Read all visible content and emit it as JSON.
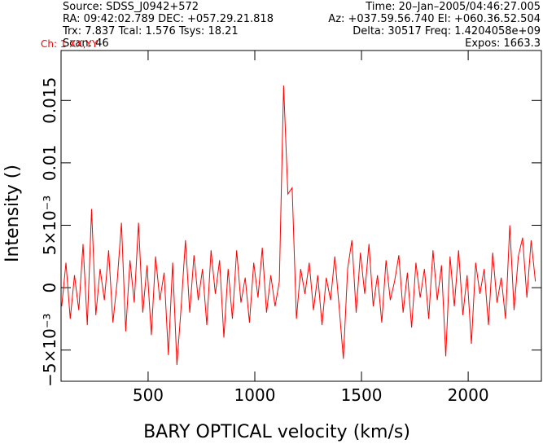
{
  "header": {
    "left": [
      "Source: SDSS_J0942+572",
      "RA: 09:42:02.789 DEC: +057.29.21.818",
      "Trx: 7.837 Tcal: 1.576 Tsys: 18.21",
      "Scan: 46"
    ],
    "right": [
      "Time: 20–Jan–2005/04:46:27.005",
      "Az: +037.59.56.740 El: +060.36.52.504",
      "Delta: 30517 Freq: 1.4204058e+09",
      "Expos: 1663.3"
    ]
  },
  "chart_data": {
    "type": "line",
    "annotation": "Ch: 1 XX,YY",
    "x_label": "BARY OPTICAL velocity (km/s)",
    "y_label": "Intensity ()",
    "xlim": [
      92,
      2343
    ],
    "ylim": [
      -0.0075,
      0.019
    ],
    "xticks": [
      500,
      1000,
      1500,
      2000
    ],
    "yticks": [
      {
        "value": -0.005,
        "label": "−5×10⁻³"
      },
      0,
      {
        "value": 0.005,
        "label": "5×10⁻³"
      },
      0.01,
      0.015
    ],
    "series": [
      {
        "color": "#ff0000",
        "x": [
          95,
          115,
          135,
          155,
          175,
          195,
          215,
          235,
          255,
          275,
          295,
          315,
          335,
          355,
          375,
          395,
          415,
          435,
          455,
          475,
          495,
          515,
          535,
          555,
          575,
          595,
          615,
          635,
          655,
          675,
          695,
          715,
          735,
          755,
          775,
          795,
          815,
          835,
          855,
          875,
          895,
          915,
          935,
          955,
          975,
          995,
          1015,
          1035,
          1055,
          1075,
          1095,
          1115,
          1135,
          1155,
          1175,
          1195,
          1215,
          1235,
          1255,
          1275,
          1295,
          1315,
          1335,
          1355,
          1375,
          1395,
          1415,
          1435,
          1455,
          1475,
          1495,
          1515,
          1535,
          1555,
          1575,
          1595,
          1615,
          1635,
          1655,
          1675,
          1695,
          1715,
          1735,
          1755,
          1775,
          1795,
          1815,
          1835,
          1855,
          1875,
          1895,
          1915,
          1935,
          1955,
          1975,
          1995,
          2015,
          2035,
          2055,
          2075,
          2095,
          2115,
          2135,
          2155,
          2175,
          2195,
          2215,
          2235,
          2255,
          2275,
          2295,
          2315
        ],
        "values": [
          -0.0015,
          0.002,
          -0.0025,
          0.001,
          -0.0018,
          0.0035,
          -0.003,
          0.0063,
          -0.0022,
          0.0015,
          -0.001,
          0.003,
          -0.0028,
          0.0005,
          0.0052,
          -0.0035,
          0.0022,
          -0.0012,
          0.0052,
          -0.002,
          0.0018,
          -0.0038,
          0.0025,
          -0.001,
          0.0012,
          -0.0054,
          0.002,
          -0.0062,
          -0.0015,
          0.0038,
          -0.002,
          0.0026,
          -0.001,
          0.0015,
          -0.003,
          0.003,
          -0.0005,
          0.0022,
          -0.004,
          0.0015,
          -0.0025,
          0.003,
          -0.0012,
          0.0008,
          -0.0028,
          0.002,
          -0.0008,
          0.0032,
          -0.002,
          0.001,
          -0.0015,
          0.0005,
          0.0162,
          0.0075,
          0.008,
          -0.0025,
          0.0015,
          -0.0005,
          0.002,
          -0.0018,
          0.001,
          -0.003,
          0.0008,
          -0.001,
          0.0025,
          -0.0015,
          -0.0057,
          0.0015,
          0.0038,
          -0.002,
          0.0028,
          -0.0005,
          0.0035,
          -0.0015,
          0.001,
          -0.0028,
          0.0022,
          -0.001,
          0.0005,
          0.0026,
          -0.002,
          0.0012,
          -0.0032,
          0.002,
          -0.0008,
          0.0015,
          -0.0025,
          0.003,
          -0.001,
          0.0018,
          -0.0055,
          0.0025,
          -0.0015,
          0.003,
          -0.0022,
          0.001,
          -0.0045,
          0.002,
          -0.0005,
          0.0015,
          -0.003,
          0.0028,
          -0.0012,
          0.0008,
          -0.0025,
          0.005,
          -0.0018,
          0.0025,
          0.004,
          -0.0008,
          0.0038,
          0.0005
        ]
      }
    ]
  }
}
